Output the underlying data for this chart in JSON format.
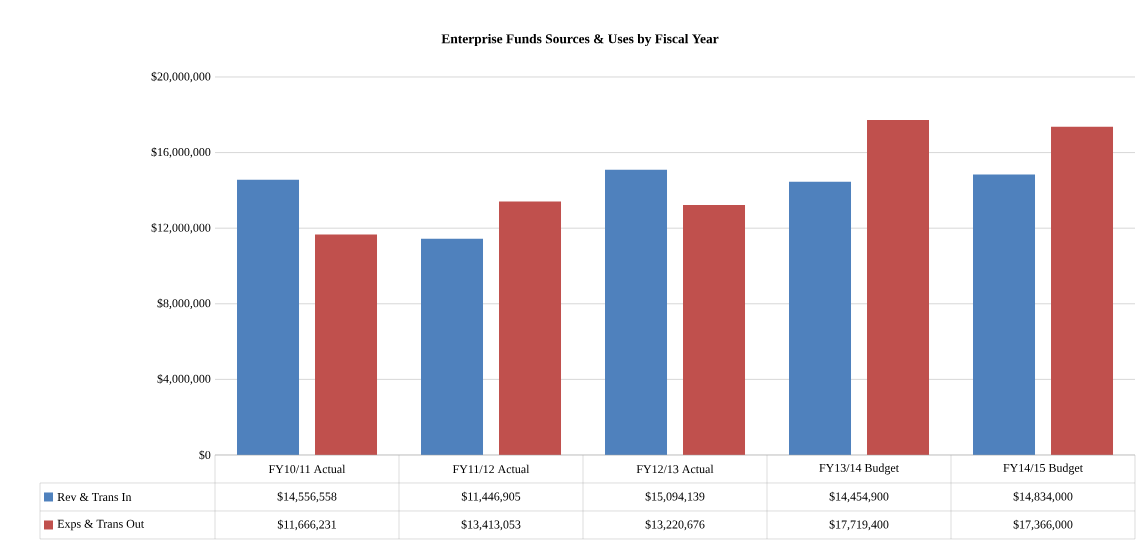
{
  "chart_data": {
    "type": "bar",
    "title": "Enterprise  Funds  Sources & Uses by Fiscal Year",
    "categories": [
      "FY10/11 Actual",
      "FY11/12 Actual",
      "FY12/13 Actual",
      "FY13/14 Budget",
      "FY14/15 Budget"
    ],
    "series": [
      {
        "name": "Rev & Trans In",
        "color": "#4f81bd",
        "values": [
          14556558,
          11446905,
          15094139,
          14454900,
          14834000
        ],
        "value_labels": [
          "$14,556,558",
          "$11,446,905",
          "$15,094,139",
          "$14,454,900",
          "$14,834,000"
        ]
      },
      {
        "name": "Exps & Trans Out",
        "color": "#c0504d",
        "values": [
          11666231,
          13413053,
          13220676,
          17719400,
          17366000
        ],
        "value_labels": [
          "$11,666,231",
          "$13,413,053",
          "$13,220,676",
          "$17,719,400",
          "$17,366,000"
        ]
      }
    ],
    "ylim": [
      0,
      20000000
    ],
    "yticks": [
      {
        "value": 0,
        "label": "$0"
      },
      {
        "value": 4000000,
        "label": "$4,000,000"
      },
      {
        "value": 8000000,
        "label": "$8,000,000"
      },
      {
        "value": 12000000,
        "label": "$12,000,000"
      },
      {
        "value": 16000000,
        "label": "$16,000,000"
      },
      {
        "value": 20000000,
        "label": "$20,000,000"
      }
    ],
    "grid": "y",
    "legend": "bottom left"
  }
}
